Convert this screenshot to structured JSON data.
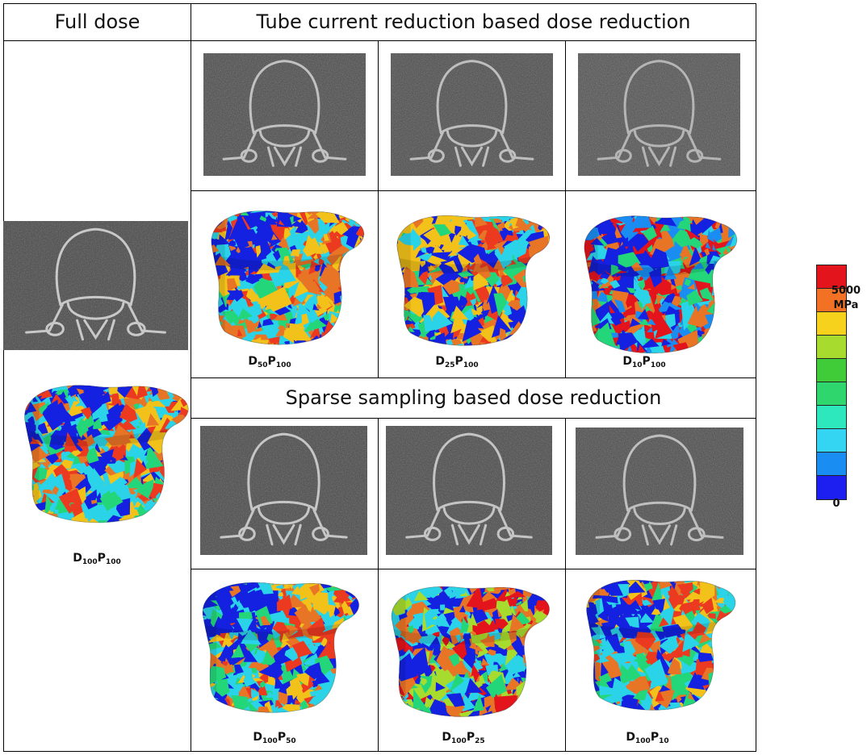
{
  "headers": {
    "full_dose": "Full dose",
    "tube_current": "Tube current reduction based dose reduction",
    "sparse_sampling": "Sparse sampling based dose reduction"
  },
  "labels": {
    "full": {
      "main_d": "D",
      "sub_d": "100",
      "main_p": "P",
      "sub_p": "100"
    },
    "tube": [
      {
        "main_d": "D",
        "sub_d": "50",
        "main_p": "P",
        "sub_p": "100"
      },
      {
        "main_d": "D",
        "sub_d": "25",
        "main_p": "P",
        "sub_p": "100"
      },
      {
        "main_d": "D",
        "sub_d": "10",
        "main_p": "P",
        "sub_p": "100"
      }
    ],
    "sparse": [
      {
        "main_d": "D",
        "sub_d": "100",
        "main_p": "P",
        "sub_p": "50"
      },
      {
        "main_d": "D",
        "sub_d": "100",
        "main_p": "P",
        "sub_p": "25"
      },
      {
        "main_d": "D",
        "sub_d": "100",
        "main_p": "P",
        "sub_p": "10"
      }
    ]
  },
  "colorbar": {
    "max_label": "5000",
    "unit": "MPa",
    "min_label": "0",
    "colors": [
      "#e3141b",
      "#f27124",
      "#f7d21c",
      "#a7dc2e",
      "#3fcc38",
      "#2ed66d",
      "#2de8bd",
      "#33d5f2",
      "#1a8df2",
      "#1c1ff0"
    ]
  },
  "vertebra_palettes": {
    "full": [
      "#2bd3e8",
      "#1421e0",
      "#24d67a",
      "#e87426",
      "#ec3a20",
      "#f3c21a"
    ],
    "tube_1": [
      "#2bd3e8",
      "#1421e0",
      "#24d67a",
      "#e87426",
      "#ec3a20",
      "#f3c21a"
    ],
    "tube_2": [
      "#1421e0",
      "#f3c21a",
      "#24d67a",
      "#e87426",
      "#2bd3e8",
      "#ec3a20"
    ],
    "tube_3": [
      "#e3141b",
      "#1421e0",
      "#2bd3e8",
      "#24d67a",
      "#e87426",
      "#1a8df2"
    ],
    "sparse_1": [
      "#2bd3e8",
      "#1421e0",
      "#24d67a",
      "#e87426",
      "#ec3a20",
      "#f3c21a"
    ],
    "sparse_2": [
      "#1421e0",
      "#2bd3e8",
      "#24d67a",
      "#e3141b",
      "#e87426",
      "#a7dc2e"
    ],
    "sparse_3": [
      "#2bd3e8",
      "#1421e0",
      "#24d67a",
      "#e87426",
      "#ec3a20",
      "#f3c21a"
    ]
  },
  "ct_noise": {
    "full": 0.35,
    "tube_1": 0.55,
    "tube_2": 0.6,
    "tube_3": 0.9,
    "sparse_1": 0.4,
    "sparse_2": 0.45,
    "sparse_3": 0.6
  }
}
